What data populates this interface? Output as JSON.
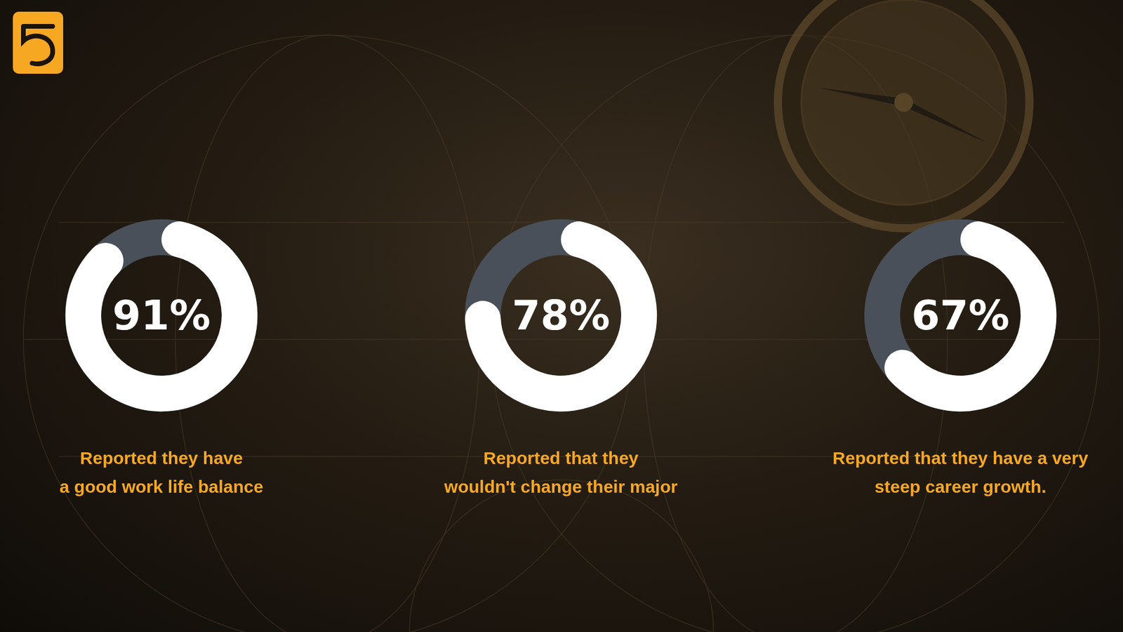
{
  "chart_data": [
    {
      "type": "donut",
      "values": [
        91
      ],
      "value_labels": [
        "91%"
      ],
      "ylim": [
        0,
        100
      ],
      "tick_labels": false,
      "color": "#ffffff",
      "annotation": "Reported they have\na good work life balance"
    },
    {
      "type": "donut",
      "values": [
        78
      ],
      "value_labels": [
        "78%"
      ],
      "ylim": [
        0,
        100
      ],
      "tick_labels": false,
      "color": "#ffffff",
      "annotation": "Reported that they\nwouldn't change their major"
    },
    {
      "type": "donut",
      "values": [
        67
      ],
      "value_labels": [
        "67%"
      ],
      "ylim": [
        0,
        100
      ],
      "tick_labels": false,
      "color": "#ffffff",
      "annotation": "Reported that they have a very\nsteep career growth."
    }
  ]
}
